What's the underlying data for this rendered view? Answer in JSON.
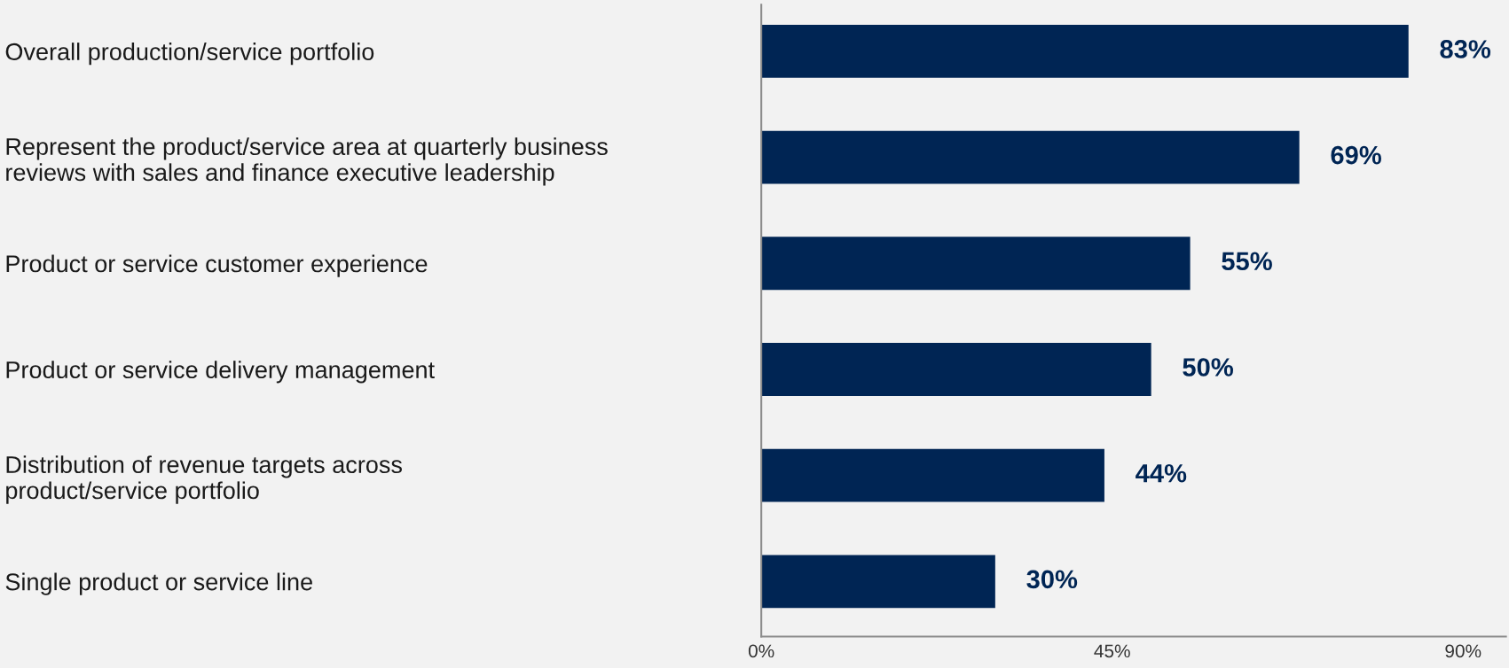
{
  "chart_data": {
    "type": "bar",
    "orientation": "horizontal",
    "categories": [
      "Overall production/service portfolio",
      "Represent the product/service area at quarterly business\nreviews with sales and finance executive leadership",
      "Product or service customer experience",
      "Product or service delivery management",
      "Distribution of revenue targets across\nproduct/service portfolio",
      "Single product or service line"
    ],
    "values": [
      83,
      69,
      55,
      50,
      44,
      30
    ],
    "color": "#002554",
    "xlim": [
      0,
      95.5
    ],
    "xticks": [
      {
        "value": 0,
        "label": "0%"
      },
      {
        "value": 45,
        "label": "45%"
      },
      {
        "value": 90,
        "label": "90%"
      }
    ],
    "value_labels": [
      "83%",
      "69%",
      "55%",
      "50%",
      "44%",
      "30%"
    ],
    "grid": false,
    "legend": false
  }
}
